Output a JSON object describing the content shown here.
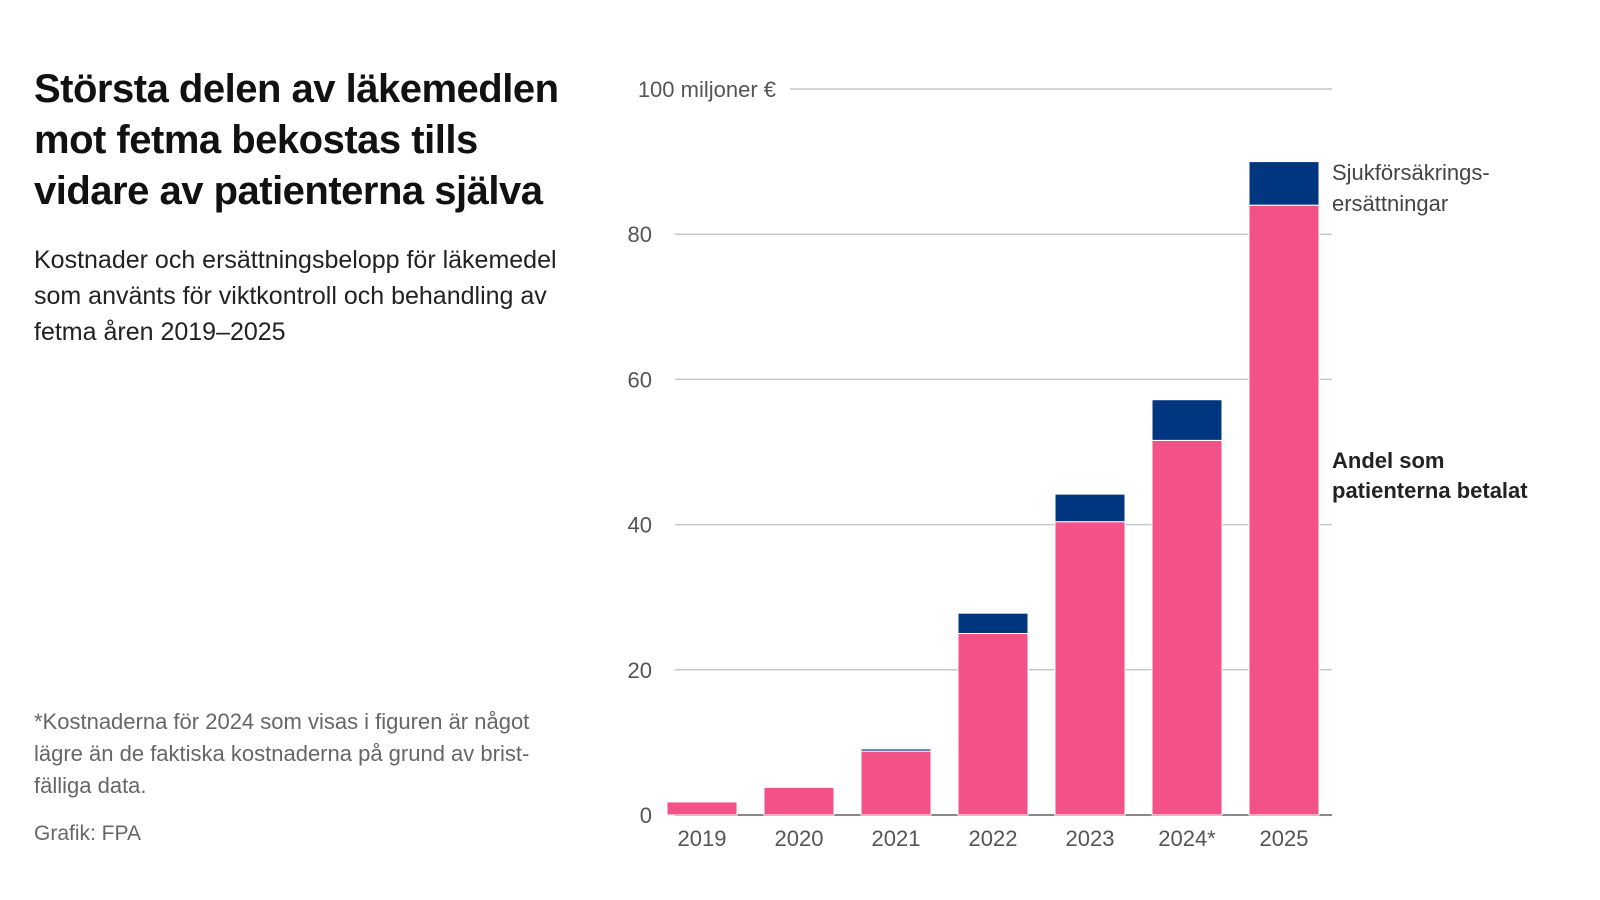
{
  "title": "Största delen av läkemedlen mot fetma bekostas tills vidare av patienterna själva",
  "subtitle": "Kostnader och ersättningsbelopp för läkemedel som använts för viktkontroll och behandling av fetma åren 2019–2025",
  "note": "*Kostnaderna för 2024 som visas i figuren är något lägre än de faktiska kostnaderna på grund av brist-fälliga data.",
  "source": "Grafik: FPA",
  "chart_data": {
    "type": "bar",
    "stacked": true,
    "categories": [
      "2019",
      "2020",
      "2021",
      "2022",
      "2023",
      "2024*",
      "2025"
    ],
    "series": [
      {
        "name": "Andel som patienterna betalat",
        "color": "#f25287",
        "values": [
          1.8,
          3.8,
          8.8,
          25.0,
          40.4,
          51.6,
          84.0
        ]
      },
      {
        "name": "Sjukförsäkrings-ersättningar",
        "color": "#003580",
        "values": [
          0,
          0,
          0.3,
          2.8,
          3.8,
          5.6,
          6.0
        ]
      }
    ],
    "ylabel": "100 miljoner €",
    "yticks": [
      "0",
      "20",
      "40",
      "60",
      "80"
    ],
    "ylim": [
      0,
      100
    ],
    "grid": true,
    "legend": "right, inline labels"
  }
}
